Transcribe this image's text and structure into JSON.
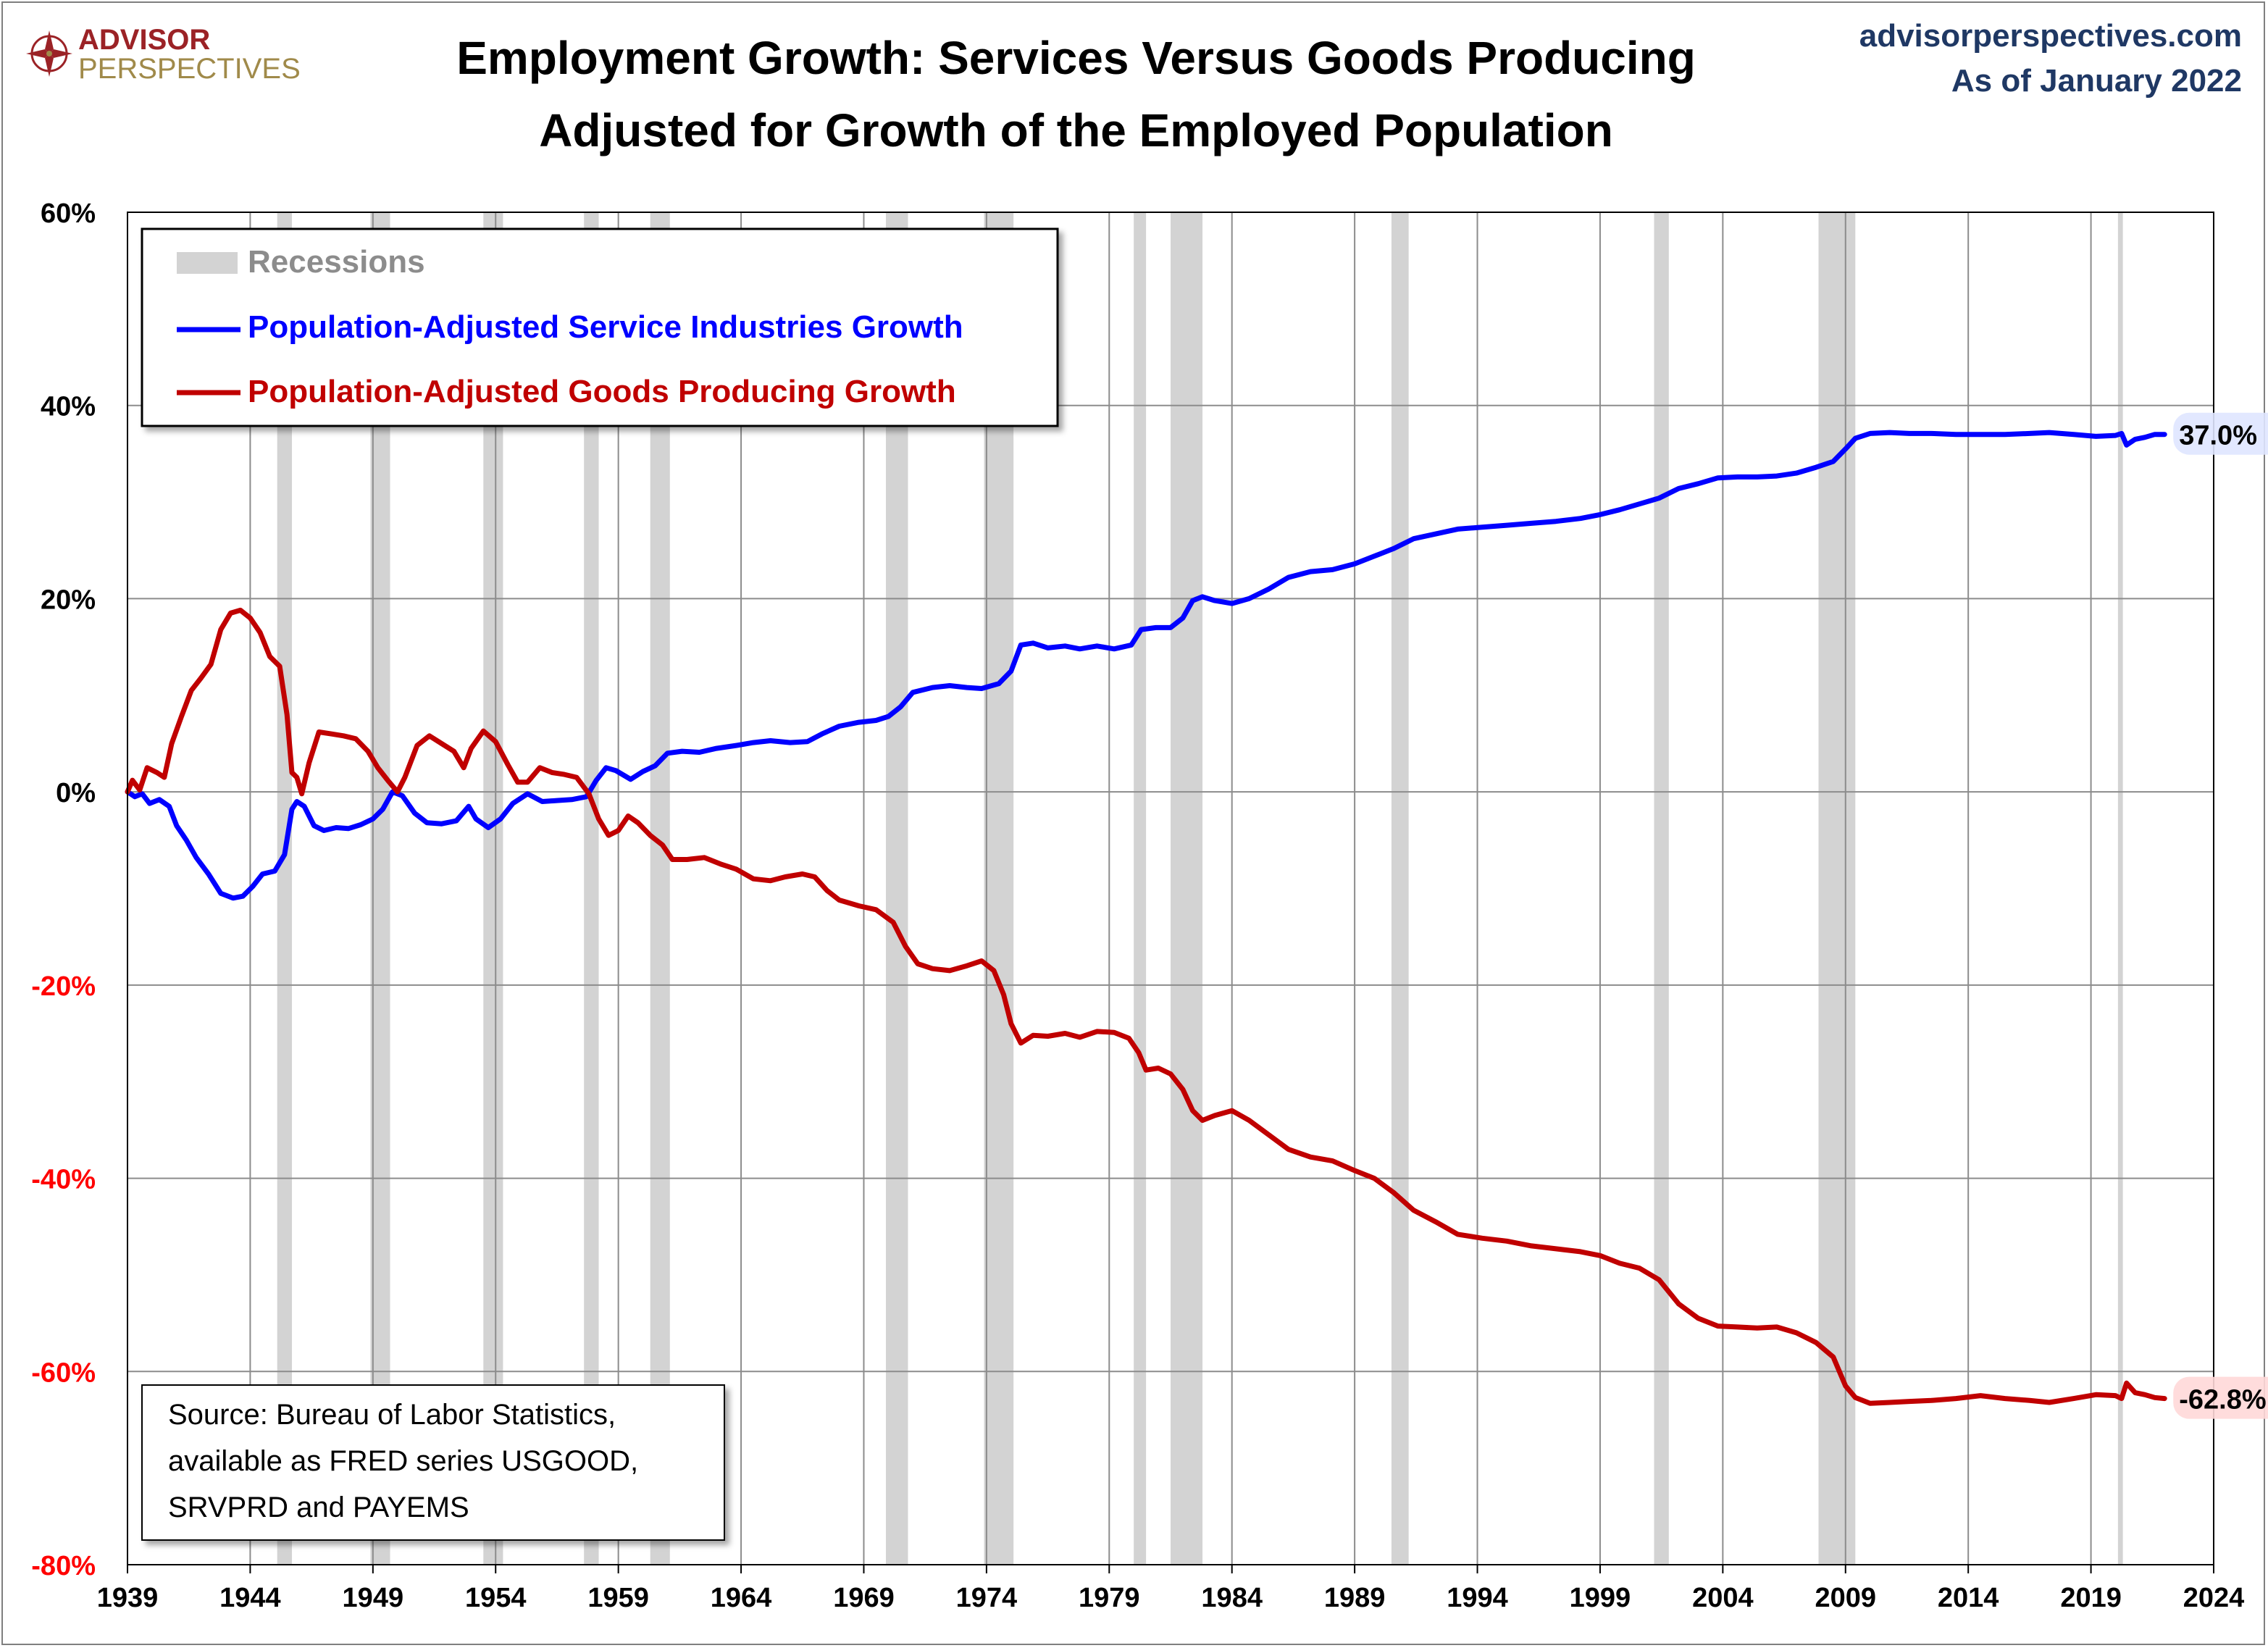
{
  "header": {
    "logo_line1": "ADVISOR",
    "logo_line2": "PERSPECTIVES",
    "title_line1": "Employment Growth: Services Versus Goods Producing",
    "title_line2": "Adjusted for Growth of the Employed Population",
    "site": "advisorperspectives.com",
    "as_of": "As of January 2022"
  },
  "source_note": {
    "line1": "Source: Bureau of Labor Statistics,",
    "line2": "available as FRED series USGOOD,",
    "line3": "SRVPRD and PAYEMS"
  },
  "colors": {
    "services": "#0000ff",
    "goods": "#c00000",
    "recession": "#d3d3d3",
    "grid": "#8c8c8c",
    "negative_tick": "#ff0000",
    "logo_red": "#9b2226",
    "logo_gold": "#a08a4a"
  },
  "chart_data": {
    "type": "line",
    "xlim": [
      1939,
      2024
    ],
    "ylim": [
      -80,
      60
    ],
    "x_ticks": [
      "1939",
      "1944",
      "1949",
      "1954",
      "1959",
      "1964",
      "1969",
      "1974",
      "1979",
      "1984",
      "1989",
      "1994",
      "1999",
      "2004",
      "2009",
      "2014",
      "2019",
      "2024"
    ],
    "y_ticks": [
      "60%",
      "40%",
      "20%",
      "0%",
      "-20%",
      "-40%",
      "-60%",
      "-80%"
    ],
    "grid": true,
    "legend_position": "top-left",
    "legend": [
      "Recessions",
      "Population-Adjusted Service Industries Growth",
      "Population-Adjusted Goods Producing Growth"
    ],
    "recessions": [
      [
        1945.1,
        1945.7
      ],
      [
        1948.9,
        1949.7
      ],
      [
        1953.5,
        1954.3
      ],
      [
        1957.6,
        1958.2
      ],
      [
        1960.3,
        1961.1
      ],
      [
        1969.9,
        1970.8
      ],
      [
        1973.9,
        1975.1
      ],
      [
        1980.0,
        1980.5
      ],
      [
        1981.5,
        1982.8
      ],
      [
        1990.5,
        1991.2
      ],
      [
        2001.2,
        2001.8
      ],
      [
        2007.9,
        2009.4
      ],
      [
        2020.1,
        2020.3
      ]
    ],
    "series": [
      {
        "name": "Population-Adjusted Service Industries Growth",
        "color": "#0000ff",
        "end_label": "37.0%",
        "points": [
          [
            1939.0,
            0
          ],
          [
            1939.3,
            -0.5
          ],
          [
            1939.6,
            -0.2
          ],
          [
            1939.9,
            -1.2
          ],
          [
            1940.3,
            -0.8
          ],
          [
            1940.7,
            -1.5
          ],
          [
            1941.0,
            -3.5
          ],
          [
            1941.4,
            -5
          ],
          [
            1941.8,
            -6.8
          ],
          [
            1942.3,
            -8.5
          ],
          [
            1942.8,
            -10.5
          ],
          [
            1943.3,
            -11
          ],
          [
            1943.7,
            -10.8
          ],
          [
            1944.1,
            -9.8
          ],
          [
            1944.5,
            -8.5
          ],
          [
            1945.0,
            -8.2
          ],
          [
            1945.4,
            -6.5
          ],
          [
            1945.7,
            -1.8
          ],
          [
            1945.9,
            -1
          ],
          [
            1946.2,
            -1.5
          ],
          [
            1946.6,
            -3.5
          ],
          [
            1947.0,
            -4
          ],
          [
            1947.5,
            -3.7
          ],
          [
            1948.0,
            -3.8
          ],
          [
            1948.5,
            -3.4
          ],
          [
            1949.0,
            -2.8
          ],
          [
            1949.4,
            -1.8
          ],
          [
            1949.8,
            0
          ],
          [
            1950.2,
            -0.4
          ],
          [
            1950.7,
            -2.2
          ],
          [
            1951.2,
            -3.2
          ],
          [
            1951.8,
            -3.3
          ],
          [
            1952.4,
            -3
          ],
          [
            1952.9,
            -1.5
          ],
          [
            1953.2,
            -2.8
          ],
          [
            1953.7,
            -3.7
          ],
          [
            1954.2,
            -2.8
          ],
          [
            1954.7,
            -1.2
          ],
          [
            1955.3,
            -0.2
          ],
          [
            1955.9,
            -1
          ],
          [
            1956.5,
            -0.9
          ],
          [
            1957.1,
            -0.8
          ],
          [
            1957.7,
            -0.5
          ],
          [
            1958.1,
            1.2
          ],
          [
            1958.5,
            2.5
          ],
          [
            1958.9,
            2.2
          ],
          [
            1959.5,
            1.3
          ],
          [
            1960.0,
            2.1
          ],
          [
            1960.5,
            2.7
          ],
          [
            1961.0,
            4
          ],
          [
            1961.6,
            4.2
          ],
          [
            1962.3,
            4.1
          ],
          [
            1963.0,
            4.5
          ],
          [
            1963.8,
            4.8
          ],
          [
            1964.5,
            5.1
          ],
          [
            1965.2,
            5.3
          ],
          [
            1966.0,
            5.1
          ],
          [
            1966.7,
            5.2
          ],
          [
            1967.3,
            6
          ],
          [
            1968.0,
            6.8
          ],
          [
            1968.8,
            7.2
          ],
          [
            1969.5,
            7.4
          ],
          [
            1970.0,
            7.8
          ],
          [
            1970.5,
            8.8
          ],
          [
            1971.0,
            10.3
          ],
          [
            1971.8,
            10.8
          ],
          [
            1972.5,
            11
          ],
          [
            1973.2,
            10.8
          ],
          [
            1973.8,
            10.7
          ],
          [
            1974.5,
            11.2
          ],
          [
            1975.0,
            12.5
          ],
          [
            1975.4,
            15.2
          ],
          [
            1975.9,
            15.4
          ],
          [
            1976.5,
            14.9
          ],
          [
            1977.2,
            15.1
          ],
          [
            1977.8,
            14.8
          ],
          [
            1978.5,
            15.1
          ],
          [
            1979.2,
            14.8
          ],
          [
            1979.9,
            15.2
          ],
          [
            1980.3,
            16.8
          ],
          [
            1980.9,
            17
          ],
          [
            1981.5,
            17
          ],
          [
            1982.0,
            18
          ],
          [
            1982.4,
            19.8
          ],
          [
            1982.8,
            20.2
          ],
          [
            1983.3,
            19.8
          ],
          [
            1984.0,
            19.5
          ],
          [
            1984.7,
            20
          ],
          [
            1985.5,
            21
          ],
          [
            1986.3,
            22.2
          ],
          [
            1987.2,
            22.8
          ],
          [
            1988.1,
            23
          ],
          [
            1989.0,
            23.6
          ],
          [
            1989.8,
            24.4
          ],
          [
            1990.6,
            25.2
          ],
          [
            1991.4,
            26.2
          ],
          [
            1992.3,
            26.7
          ],
          [
            1993.2,
            27.2
          ],
          [
            1994.2,
            27.4
          ],
          [
            1995.2,
            27.6
          ],
          [
            1996.2,
            27.8
          ],
          [
            1997.2,
            28
          ],
          [
            1998.2,
            28.3
          ],
          [
            1999.0,
            28.7
          ],
          [
            1999.8,
            29.2
          ],
          [
            2000.6,
            29.8
          ],
          [
            2001.4,
            30.4
          ],
          [
            2002.2,
            31.4
          ],
          [
            2003.0,
            31.9
          ],
          [
            2003.8,
            32.5
          ],
          [
            2004.6,
            32.6
          ],
          [
            2005.4,
            32.6
          ],
          [
            2006.2,
            32.7
          ],
          [
            2007.0,
            33
          ],
          [
            2007.8,
            33.6
          ],
          [
            2008.5,
            34.2
          ],
          [
            2009.0,
            35.5
          ],
          [
            2009.4,
            36.6
          ],
          [
            2010.0,
            37.1
          ],
          [
            2010.8,
            37.2
          ],
          [
            2011.6,
            37.1
          ],
          [
            2012.5,
            37.1
          ],
          [
            2013.5,
            37
          ],
          [
            2014.5,
            37
          ],
          [
            2015.5,
            37
          ],
          [
            2016.5,
            37.1
          ],
          [
            2017.3,
            37.2
          ],
          [
            2018.3,
            37
          ],
          [
            2019.2,
            36.8
          ],
          [
            2020.0,
            36.9
          ],
          [
            2020.25,
            37.1
          ],
          [
            2020.45,
            35.9
          ],
          [
            2020.8,
            36.5
          ],
          [
            2021.2,
            36.7
          ],
          [
            2021.6,
            37
          ],
          [
            2022.0,
            37
          ]
        ]
      },
      {
        "name": "Population-Adjusted Goods Producing Growth",
        "color": "#c00000",
        "end_label": "-62.8%",
        "points": [
          [
            1939.0,
            0
          ],
          [
            1939.2,
            1.2
          ],
          [
            1939.5,
            0.2
          ],
          [
            1939.8,
            2.5
          ],
          [
            1940.2,
            2
          ],
          [
            1940.5,
            1.5
          ],
          [
            1940.8,
            5
          ],
          [
            1941.2,
            7.8
          ],
          [
            1941.6,
            10.5
          ],
          [
            1942.0,
            11.8
          ],
          [
            1942.4,
            13.2
          ],
          [
            1942.8,
            16.8
          ],
          [
            1943.2,
            18.5
          ],
          [
            1943.6,
            18.8
          ],
          [
            1944.0,
            18
          ],
          [
            1944.4,
            16.5
          ],
          [
            1944.8,
            14
          ],
          [
            1945.2,
            13
          ],
          [
            1945.5,
            8
          ],
          [
            1945.7,
            2
          ],
          [
            1945.9,
            1.5
          ],
          [
            1946.1,
            -0.2
          ],
          [
            1946.4,
            3
          ],
          [
            1946.8,
            6.2
          ],
          [
            1947.3,
            6
          ],
          [
            1947.8,
            5.8
          ],
          [
            1948.3,
            5.5
          ],
          [
            1948.8,
            4.2
          ],
          [
            1949.2,
            2.5
          ],
          [
            1949.6,
            1.2
          ],
          [
            1950.0,
            0
          ],
          [
            1950.3,
            1.5
          ],
          [
            1950.8,
            4.8
          ],
          [
            1951.3,
            5.8
          ],
          [
            1951.8,
            5
          ],
          [
            1952.3,
            4.2
          ],
          [
            1952.7,
            2.5
          ],
          [
            1953.0,
            4.5
          ],
          [
            1953.5,
            6.3
          ],
          [
            1954.0,
            5.2
          ],
          [
            1954.5,
            2.8
          ],
          [
            1954.9,
            1
          ],
          [
            1955.3,
            1
          ],
          [
            1955.8,
            2.5
          ],
          [
            1956.3,
            2
          ],
          [
            1956.8,
            1.8
          ],
          [
            1957.3,
            1.5
          ],
          [
            1957.8,
            -0.2
          ],
          [
            1958.2,
            -2.8
          ],
          [
            1958.6,
            -4.5
          ],
          [
            1959.0,
            -4
          ],
          [
            1959.4,
            -2.5
          ],
          [
            1959.8,
            -3.2
          ],
          [
            1960.3,
            -4.5
          ],
          [
            1960.8,
            -5.5
          ],
          [
            1961.2,
            -7
          ],
          [
            1961.8,
            -7
          ],
          [
            1962.5,
            -6.8
          ],
          [
            1963.2,
            -7.5
          ],
          [
            1963.8,
            -8
          ],
          [
            1964.5,
            -9
          ],
          [
            1965.2,
            -9.2
          ],
          [
            1965.8,
            -8.8
          ],
          [
            1966.5,
            -8.5
          ],
          [
            1967.0,
            -8.8
          ],
          [
            1967.5,
            -10.2
          ],
          [
            1968.0,
            -11.2
          ],
          [
            1968.8,
            -11.8
          ],
          [
            1969.5,
            -12.2
          ],
          [
            1970.2,
            -13.5
          ],
          [
            1970.7,
            -16
          ],
          [
            1971.2,
            -17.8
          ],
          [
            1971.8,
            -18.3
          ],
          [
            1972.5,
            -18.5
          ],
          [
            1973.2,
            -18
          ],
          [
            1973.8,
            -17.5
          ],
          [
            1974.3,
            -18.5
          ],
          [
            1974.7,
            -21
          ],
          [
            1975.0,
            -24
          ],
          [
            1975.4,
            -26
          ],
          [
            1975.9,
            -25.2
          ],
          [
            1976.5,
            -25.3
          ],
          [
            1977.2,
            -25
          ],
          [
            1977.8,
            -25.4
          ],
          [
            1978.5,
            -24.8
          ],
          [
            1979.2,
            -24.9
          ],
          [
            1979.8,
            -25.5
          ],
          [
            1980.2,
            -27
          ],
          [
            1980.5,
            -28.8
          ],
          [
            1981.0,
            -28.6
          ],
          [
            1981.5,
            -29.2
          ],
          [
            1982.0,
            -30.8
          ],
          [
            1982.4,
            -33
          ],
          [
            1982.8,
            -34
          ],
          [
            1983.3,
            -33.5
          ],
          [
            1984.0,
            -33
          ],
          [
            1984.7,
            -34
          ],
          [
            1985.5,
            -35.5
          ],
          [
            1986.3,
            -37
          ],
          [
            1987.2,
            -37.8
          ],
          [
            1988.1,
            -38.2
          ],
          [
            1989.0,
            -39.2
          ],
          [
            1989.8,
            -40
          ],
          [
            1990.6,
            -41.5
          ],
          [
            1991.4,
            -43.3
          ],
          [
            1992.3,
            -44.5
          ],
          [
            1993.2,
            -45.8
          ],
          [
            1994.2,
            -46.2
          ],
          [
            1995.2,
            -46.5
          ],
          [
            1996.2,
            -47
          ],
          [
            1997.2,
            -47.3
          ],
          [
            1998.2,
            -47.6
          ],
          [
            1999.0,
            -48
          ],
          [
            1999.8,
            -48.8
          ],
          [
            2000.6,
            -49.3
          ],
          [
            2001.4,
            -50.5
          ],
          [
            2002.2,
            -53
          ],
          [
            2003.0,
            -54.5
          ],
          [
            2003.8,
            -55.3
          ],
          [
            2004.6,
            -55.4
          ],
          [
            2005.4,
            -55.5
          ],
          [
            2006.2,
            -55.4
          ],
          [
            2007.0,
            -56
          ],
          [
            2007.8,
            -57
          ],
          [
            2008.5,
            -58.5
          ],
          [
            2009.0,
            -61.5
          ],
          [
            2009.4,
            -62.7
          ],
          [
            2010.0,
            -63.3
          ],
          [
            2010.8,
            -63.2
          ],
          [
            2011.6,
            -63.1
          ],
          [
            2012.5,
            -63
          ],
          [
            2013.5,
            -62.8
          ],
          [
            2014.5,
            -62.5
          ],
          [
            2015.5,
            -62.8
          ],
          [
            2016.5,
            -63
          ],
          [
            2017.3,
            -63.2
          ],
          [
            2018.3,
            -62.8
          ],
          [
            2019.2,
            -62.4
          ],
          [
            2020.0,
            -62.5
          ],
          [
            2020.25,
            -62.8
          ],
          [
            2020.45,
            -61.2
          ],
          [
            2020.8,
            -62.2
          ],
          [
            2021.2,
            -62.4
          ],
          [
            2021.6,
            -62.7
          ],
          [
            2022.0,
            -62.8
          ]
        ]
      }
    ]
  }
}
